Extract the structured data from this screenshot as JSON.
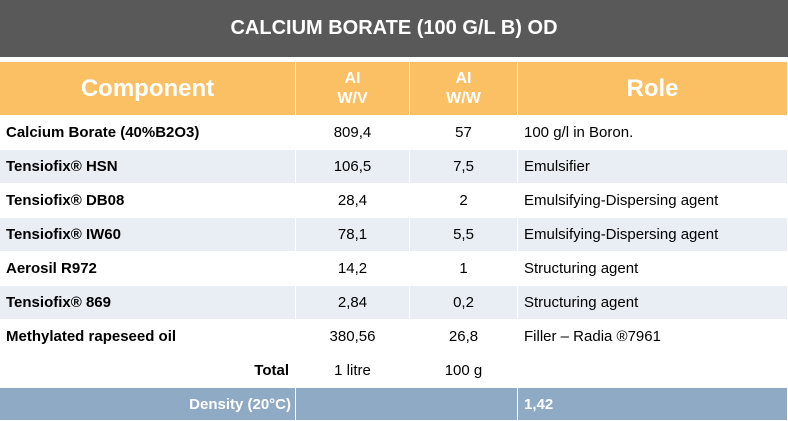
{
  "title": "CALCIUM BORATE (100 G/L B) OD",
  "table": {
    "header": [
      "Component",
      [
        "AI",
        "W/V"
      ],
      [
        "AI",
        "W/W"
      ],
      "Role"
    ],
    "rows": [
      [
        "Calcium Borate (40%B2O3)",
        "809,4",
        "57",
        "100 g/l in Boron."
      ],
      [
        "Tensiofix® HSN",
        "106,5",
        "7,5",
        "Emulsifier"
      ],
      [
        "Tensiofix® DB08",
        "28,4",
        "2",
        "Emulsifying-Dispersing agent"
      ],
      [
        "Tensiofix® IW60",
        "78,1",
        "5,5",
        "Emulsifying-Dispersing agent"
      ],
      [
        "Aerosil R972",
        "14,2",
        "1",
        "Structuring agent"
      ],
      [
        "Tensiofix® 869",
        "2,84",
        "0,2",
        "Structuring agent"
      ],
      [
        "Methylated rapeseed oil",
        "380,56",
        "26,8",
        "Filler – Radia ®7961"
      ]
    ],
    "total": [
      "Total",
      "1 litre",
      "100 g"
    ],
    "density": [
      "Density (20°C)",
      "1,42"
    ]
  }
}
